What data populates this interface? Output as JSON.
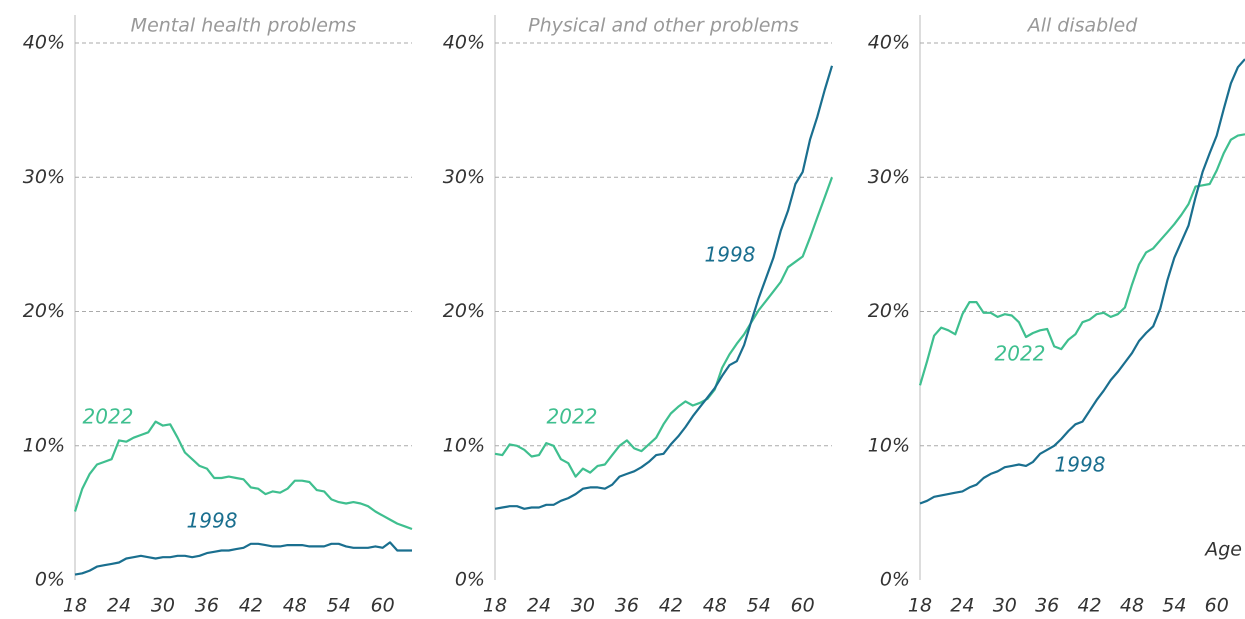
{
  "chart_data": [
    {
      "type": "line",
      "title": "Mental health problems",
      "xlim": [
        18,
        64
      ],
      "xticks": [
        18,
        24,
        30,
        36,
        42,
        48,
        54,
        60
      ],
      "ylim": [
        0,
        40
      ],
      "yticks": [
        {
          "value": 0,
          "label": "0%"
        },
        {
          "value": 10,
          "label": "10%"
        },
        {
          "value": 20,
          "label": "20%"
        },
        {
          "value": 30,
          "label": "30%"
        },
        {
          "value": 40,
          "label": "40%"
        }
      ],
      "grid": true,
      "x": [
        18,
        19,
        20,
        21,
        22,
        23,
        24,
        25,
        26,
        27,
        28,
        29,
        30,
        31,
        32,
        33,
        34,
        35,
        36,
        37,
        38,
        39,
        40,
        41,
        42,
        43,
        44,
        45,
        46,
        47,
        48,
        49,
        50,
        51,
        52,
        53,
        54,
        55,
        56,
        57,
        58,
        59,
        60,
        61,
        62,
        63,
        64
      ],
      "series": [
        {
          "name": "2022",
          "color": "#3fbf8f",
          "values": [
            5.1,
            6.8,
            7.9,
            8.6,
            8.8,
            9.0,
            10.4,
            10.3,
            10.6,
            10.8,
            11.0,
            11.8,
            11.5,
            11.6,
            10.6,
            9.5,
            9.0,
            8.5,
            8.3,
            7.6,
            7.6,
            7.7,
            7.6,
            7.5,
            6.9,
            6.8,
            6.4,
            6.6,
            6.5,
            6.8,
            7.4,
            7.4,
            7.3,
            6.7,
            6.6,
            6.0,
            5.8,
            5.7,
            5.8,
            5.7,
            5.5,
            5.1,
            4.8,
            4.5,
            4.2,
            4.0,
            3.8
          ]
        },
        {
          "name": "1998",
          "color": "#1a6f8f",
          "values": [
            0.4,
            0.5,
            0.7,
            1.0,
            1.1,
            1.2,
            1.3,
            1.6,
            1.7,
            1.8,
            1.7,
            1.6,
            1.7,
            1.7,
            1.8,
            1.8,
            1.7,
            1.8,
            2.0,
            2.1,
            2.2,
            2.2,
            2.3,
            2.4,
            2.7,
            2.7,
            2.6,
            2.5,
            2.5,
            2.6,
            2.6,
            2.6,
            2.5,
            2.5,
            2.5,
            2.7,
            2.7,
            2.5,
            2.4,
            2.4,
            2.4,
            2.5,
            2.4,
            2.8,
            2.2,
            2.2,
            2.2
          ]
        }
      ]
    },
    {
      "type": "line",
      "title": "Physical and other problems",
      "xlim": [
        18,
        64
      ],
      "xticks": [
        18,
        24,
        30,
        36,
        42,
        48,
        54,
        60
      ],
      "ylim": [
        0,
        40
      ],
      "yticks": [
        {
          "value": 0,
          "label": "0%"
        },
        {
          "value": 10,
          "label": "10%"
        },
        {
          "value": 20,
          "label": "20%"
        },
        {
          "value": 30,
          "label": "30%"
        },
        {
          "value": 40,
          "label": "40%"
        }
      ],
      "grid": true,
      "x": [
        18,
        19,
        20,
        21,
        22,
        23,
        24,
        25,
        26,
        27,
        28,
        29,
        30,
        31,
        32,
        33,
        34,
        35,
        36,
        37,
        38,
        39,
        40,
        41,
        42,
        43,
        44,
        45,
        46,
        47,
        48,
        49,
        50,
        51,
        52,
        53,
        54,
        55,
        56,
        57,
        58,
        59,
        60,
        61,
        62,
        63,
        64
      ],
      "series": [
        {
          "name": "2022",
          "color": "#3fbf8f",
          "values": [
            9.4,
            9.3,
            10.1,
            10.0,
            9.7,
            9.2,
            9.3,
            10.2,
            10.0,
            9.0,
            8.7,
            7.7,
            8.3,
            8.0,
            8.5,
            8.6,
            9.3,
            10.0,
            10.4,
            9.8,
            9.6,
            10.1,
            10.6,
            11.6,
            12.4,
            12.9,
            13.3,
            13.0,
            13.2,
            13.5,
            14.2,
            15.8,
            16.8,
            17.6,
            18.3,
            19.2,
            20.1,
            20.8,
            21.5,
            22.2,
            23.3,
            23.7,
            24.1,
            25.5,
            27.0,
            28.5,
            30.0
          ]
        },
        {
          "name": "1998",
          "color": "#1a6f8f",
          "values": [
            5.3,
            5.4,
            5.5,
            5.5,
            5.3,
            5.4,
            5.4,
            5.6,
            5.6,
            5.9,
            6.1,
            6.4,
            6.8,
            6.9,
            6.9,
            6.8,
            7.1,
            7.7,
            7.9,
            8.1,
            8.4,
            8.8,
            9.3,
            9.4,
            10.1,
            10.7,
            11.4,
            12.2,
            12.9,
            13.6,
            14.3,
            15.2,
            16.0,
            16.3,
            17.5,
            19.3,
            21.0,
            22.5,
            24.0,
            26.0,
            27.5,
            29.5,
            30.4,
            32.8,
            34.5,
            36.5,
            38.3
          ]
        }
      ]
    },
    {
      "type": "line",
      "title": "All disabled",
      "x_label": "Age",
      "xlim": [
        18,
        64
      ],
      "xticks": [
        18,
        24,
        30,
        36,
        42,
        48,
        54,
        60
      ],
      "ylim": [
        0,
        40
      ],
      "yticks": [
        {
          "value": 0,
          "label": "0%"
        },
        {
          "value": 10,
          "label": "10%"
        },
        {
          "value": 20,
          "label": "20%"
        },
        {
          "value": 30,
          "label": "30%"
        },
        {
          "value": 40,
          "label": "40%"
        }
      ],
      "grid": true,
      "x": [
        18,
        19,
        20,
        21,
        22,
        23,
        24,
        25,
        26,
        27,
        28,
        29,
        30,
        31,
        32,
        33,
        34,
        35,
        36,
        37,
        38,
        39,
        40,
        41,
        42,
        43,
        44,
        45,
        46,
        47,
        48,
        49,
        50,
        51,
        52,
        53,
        54,
        55,
        56,
        57,
        58,
        59,
        60,
        61,
        62,
        63,
        64
      ],
      "series": [
        {
          "name": "2022",
          "color": "#3fbf8f",
          "values": [
            14.5,
            16.3,
            18.2,
            18.8,
            18.6,
            18.3,
            19.8,
            20.7,
            20.7,
            19.9,
            19.9,
            19.6,
            19.8,
            19.7,
            19.2,
            18.1,
            18.4,
            18.6,
            18.7,
            17.4,
            17.2,
            17.9,
            18.3,
            19.2,
            19.4,
            19.8,
            19.9,
            19.6,
            19.8,
            20.3,
            22.0,
            23.5,
            24.4,
            24.7,
            25.3,
            25.9,
            26.5,
            27.2,
            28.0,
            29.3,
            29.4,
            29.5,
            30.5,
            31.8,
            32.8,
            33.1,
            33.2
          ]
        },
        {
          "name": "1998",
          "color": "#1a6f8f",
          "values": [
            5.7,
            5.9,
            6.2,
            6.3,
            6.4,
            6.5,
            6.6,
            6.9,
            7.1,
            7.6,
            7.9,
            8.1,
            8.4,
            8.5,
            8.6,
            8.5,
            8.8,
            9.4,
            9.7,
            10.0,
            10.5,
            11.1,
            11.6,
            11.8,
            12.6,
            13.4,
            14.1,
            14.9,
            15.5,
            16.2,
            16.9,
            17.8,
            18.4,
            18.9,
            20.2,
            22.3,
            24.0,
            25.2,
            26.4,
            28.5,
            30.4,
            31.8,
            33.1,
            35.1,
            37.0,
            38.2,
            38.8
          ]
        }
      ]
    }
  ]
}
